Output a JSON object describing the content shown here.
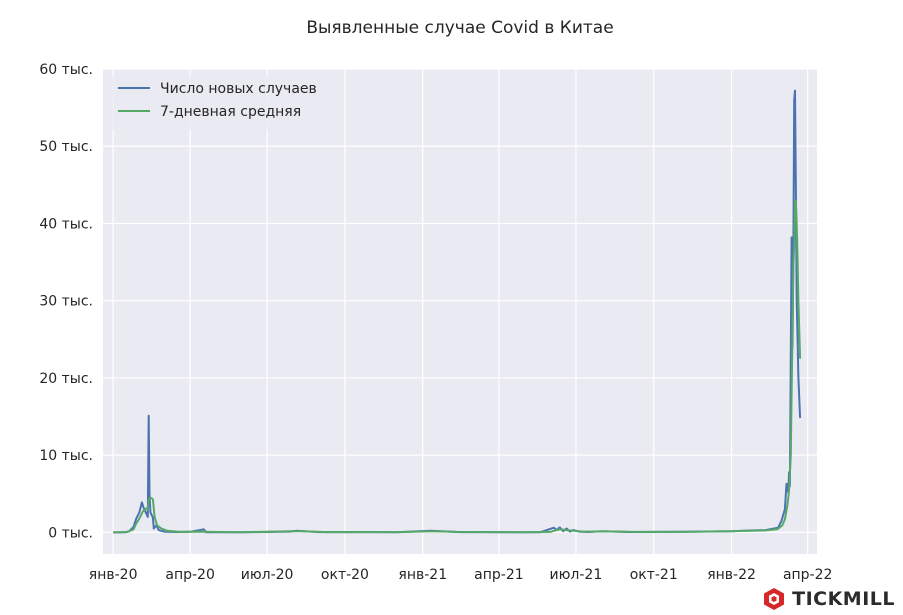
{
  "chart_data": {
    "type": "line",
    "title": "Выявленные случае Covid в Китае",
    "xlabel": "",
    "ylabel": "",
    "x_tick_labels": [
      "янв-20",
      "апр-20",
      "июл-20",
      "окт-20",
      "янв-21",
      "апр-21",
      "июл-21",
      "окт-21",
      "янв-22",
      "апр-22"
    ],
    "x_tick_dates": [
      "2020-01-01",
      "2020-04-01",
      "2020-07-01",
      "2020-10-01",
      "2021-01-01",
      "2021-04-01",
      "2021-07-01",
      "2021-10-01",
      "2022-01-01",
      "2022-04-01"
    ],
    "xlim": [
      "2019-12-20",
      "2022-04-12"
    ],
    "y_tick_labels": [
      "0 тыс.",
      "10 тыс.",
      "20 тыс.",
      "30 тыс.",
      "40 тыс.",
      "50 тыс.",
      "60 тыс."
    ],
    "y_tick_values": [
      0,
      10000,
      20000,
      30000,
      40000,
      50000,
      60000
    ],
    "ylim": [
      -2800,
      60000
    ],
    "grid": true,
    "legend_position": "top-left",
    "series": [
      {
        "name": "Число новых случаев",
        "color": "#4c72b0",
        "points": [
          [
            "2020-01-01",
            0
          ],
          [
            "2020-01-15",
            10
          ],
          [
            "2020-01-20",
            150
          ],
          [
            "2020-01-25",
            700
          ],
          [
            "2020-01-28",
            1700
          ],
          [
            "2020-02-01",
            2600
          ],
          [
            "2020-02-04",
            3900
          ],
          [
            "2020-02-06",
            3200
          ],
          [
            "2020-02-09",
            2500
          ],
          [
            "2020-02-11",
            2000
          ],
          [
            "2020-02-12",
            15100
          ],
          [
            "2020-02-13",
            5000
          ],
          [
            "2020-02-14",
            2600
          ],
          [
            "2020-02-17",
            1900
          ],
          [
            "2020-02-18",
            500
          ],
          [
            "2020-02-21",
            900
          ],
          [
            "2020-02-24",
            300
          ],
          [
            "2020-03-01",
            100
          ],
          [
            "2020-03-15",
            50
          ],
          [
            "2020-04-01",
            70
          ],
          [
            "2020-04-17",
            400
          ],
          [
            "2020-04-20",
            10
          ],
          [
            "2020-06-01",
            10
          ],
          [
            "2020-07-28",
            100
          ],
          [
            "2020-08-05",
            200
          ],
          [
            "2020-09-01",
            30
          ],
          [
            "2020-12-01",
            20
          ],
          [
            "2021-01-10",
            200
          ],
          [
            "2021-01-20",
            170
          ],
          [
            "2021-02-15",
            40
          ],
          [
            "2021-05-01",
            10
          ],
          [
            "2021-05-20",
            20
          ],
          [
            "2021-06-05",
            600
          ],
          [
            "2021-06-08",
            300
          ],
          [
            "2021-06-12",
            650
          ],
          [
            "2021-06-16",
            150
          ],
          [
            "2021-06-20",
            500
          ],
          [
            "2021-06-24",
            100
          ],
          [
            "2021-06-28",
            300
          ],
          [
            "2021-07-05",
            100
          ],
          [
            "2021-07-15",
            50
          ],
          [
            "2021-08-01",
            150
          ],
          [
            "2021-09-01",
            50
          ],
          [
            "2021-11-01",
            80
          ],
          [
            "2022-01-01",
            150
          ],
          [
            "2022-01-15",
            200
          ],
          [
            "2022-02-10",
            300
          ],
          [
            "2022-02-25",
            600
          ],
          [
            "2022-03-01",
            1500
          ],
          [
            "2022-03-05",
            3000
          ],
          [
            "2022-03-07",
            6300
          ],
          [
            "2022-03-09",
            5200
          ],
          [
            "2022-03-10",
            7800
          ],
          [
            "2022-03-11",
            6000
          ],
          [
            "2022-03-13",
            38200
          ],
          [
            "2022-03-14",
            24000
          ],
          [
            "2022-03-15",
            35000
          ],
          [
            "2022-03-16",
            56000
          ],
          [
            "2022-03-17",
            57200
          ],
          [
            "2022-03-18",
            44000
          ],
          [
            "2022-03-19",
            30000
          ],
          [
            "2022-03-20",
            25500
          ],
          [
            "2022-03-21",
            20000
          ],
          [
            "2022-03-23",
            14800
          ]
        ]
      },
      {
        "name": "7-дневная средняя",
        "color": "#55a868",
        "points": [
          [
            "2020-01-01",
            0
          ],
          [
            "2020-01-18",
            50
          ],
          [
            "2020-01-25",
            400
          ],
          [
            "2020-01-28",
            1100
          ],
          [
            "2020-02-01",
            1800
          ],
          [
            "2020-02-05",
            2700
          ],
          [
            "2020-02-09",
            3100
          ],
          [
            "2020-02-11",
            3000
          ],
          [
            "2020-02-12",
            4200
          ],
          [
            "2020-02-14",
            4500
          ],
          [
            "2020-02-17",
            4300
          ],
          [
            "2020-02-19",
            2000
          ],
          [
            "2020-02-22",
            900
          ],
          [
            "2020-02-27",
            500
          ],
          [
            "2020-03-05",
            200
          ],
          [
            "2020-03-20",
            60
          ],
          [
            "2020-04-10",
            100
          ],
          [
            "2020-04-25",
            60
          ],
          [
            "2020-06-01",
            20
          ],
          [
            "2020-07-30",
            150
          ],
          [
            "2020-08-10",
            150
          ],
          [
            "2020-09-10",
            40
          ],
          [
            "2020-12-01",
            30
          ],
          [
            "2021-01-15",
            150
          ],
          [
            "2021-02-10",
            60
          ],
          [
            "2021-05-01",
            20
          ],
          [
            "2021-06-01",
            60
          ],
          [
            "2021-06-05",
            200
          ],
          [
            "2021-06-12",
            400
          ],
          [
            "2021-06-20",
            300
          ],
          [
            "2021-06-28",
            220
          ],
          [
            "2021-07-10",
            100
          ],
          [
            "2021-08-05",
            130
          ],
          [
            "2021-09-10",
            60
          ],
          [
            "2021-11-10",
            60
          ],
          [
            "2022-01-05",
            160
          ],
          [
            "2022-02-10",
            260
          ],
          [
            "2022-02-24",
            400
          ],
          [
            "2022-03-02",
            900
          ],
          [
            "2022-03-05",
            1700
          ],
          [
            "2022-03-08",
            3500
          ],
          [
            "2022-03-10",
            5500
          ],
          [
            "2022-03-12",
            10000
          ],
          [
            "2022-03-13",
            18000
          ],
          [
            "2022-03-14",
            26000
          ],
          [
            "2022-03-15",
            34500
          ],
          [
            "2022-03-16",
            37000
          ],
          [
            "2022-03-17",
            43000
          ],
          [
            "2022-03-18",
            42800
          ],
          [
            "2022-03-19",
            40000
          ],
          [
            "2022-03-20",
            36000
          ],
          [
            "2022-03-21",
            30000
          ],
          [
            "2022-03-23",
            22500
          ]
        ]
      }
    ]
  },
  "brand": {
    "name": "TICKMILL",
    "logo_icon": "tickmill-logo-icon",
    "logo_color": "#d62828"
  }
}
